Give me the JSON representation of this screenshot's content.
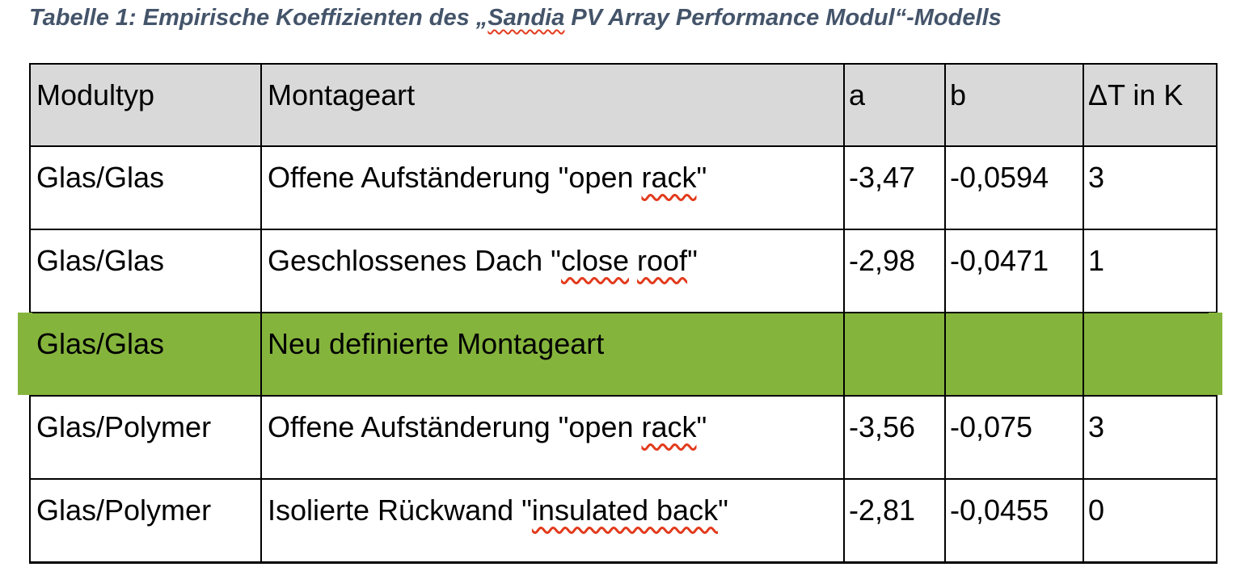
{
  "colors": {
    "header_bg": "#D9D9D9",
    "highlight_green": "#85B43D",
    "caption_text": "#44546A",
    "spellcheck_red": "#E23A1C",
    "table_border": "#000000"
  },
  "caption": {
    "label": "Tabelle 1",
    "parts": [
      {
        "text": "Tabelle 1: Empirische Koeffizienten des „"
      },
      {
        "text": "Sandia",
        "misspelled": true
      },
      {
        "text": " PV Array Performance Modul“-Modells"
      }
    ]
  },
  "table": {
    "headers": [
      "Modultyp",
      "Montageart",
      "a",
      "b",
      "ΔT in K"
    ],
    "rows": [
      {
        "modultyp": "Glas/Glas",
        "montageart_parts": [
          {
            "text": "Offene Aufständerung \"open "
          },
          {
            "text": "rack",
            "misspelled": true
          },
          {
            "text": "\""
          }
        ],
        "a": "-3,47",
        "b": "-0,0594",
        "dt": "3",
        "highlighted": false
      },
      {
        "modultyp": "Glas/Glas",
        "montageart_parts": [
          {
            "text": "Geschlossenes Dach \""
          },
          {
            "text": "close",
            "misspelled": true
          },
          {
            "text": " "
          },
          {
            "text": "roof",
            "misspelled": true
          },
          {
            "text": "\""
          }
        ],
        "a": "-2,98",
        "b": "-0,0471",
        "dt": "1",
        "highlighted": false
      },
      {
        "modultyp": "Glas/Glas",
        "montageart_parts": [
          {
            "text": "Neu definierte Montageart"
          }
        ],
        "a": "",
        "b": "",
        "dt": "",
        "highlighted": true
      },
      {
        "modultyp": "Glas/Polymer",
        "montageart_parts": [
          {
            "text": "Offene Aufständerung \"open "
          },
          {
            "text": "rack",
            "misspelled": true
          },
          {
            "text": "\""
          }
        ],
        "a": "-3,56",
        "b": "-0,075",
        "dt": "3",
        "highlighted": false
      },
      {
        "modultyp": "Glas/Polymer",
        "montageart_parts": [
          {
            "text": "Isolierte Rückwand \""
          },
          {
            "text": "insulated back",
            "misspelled": true
          },
          {
            "text": "\""
          }
        ],
        "a": "-2,81",
        "b": "-0,0455",
        "dt": "0",
        "highlighted": false
      }
    ]
  }
}
